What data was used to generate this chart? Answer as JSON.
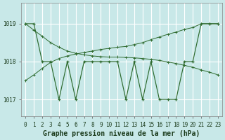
{
  "background_color": "#c8e8e8",
  "grid_color": "#b0d8d8",
  "line_color": "#2d6a2d",
  "title": "Graphe pression niveau de la mer (hPa)",
  "ylim": [
    1016.55,
    1019.55
  ],
  "xlim": [
    -0.5,
    23.5
  ],
  "yticks": [
    1017,
    1018,
    1019
  ],
  "xticks": [
    0,
    1,
    2,
    3,
    4,
    5,
    6,
    7,
    8,
    9,
    10,
    11,
    12,
    13,
    14,
    15,
    16,
    17,
    18,
    19,
    20,
    21,
    22,
    23
  ],
  "series1_x": [
    0,
    1,
    2,
    3,
    4,
    5,
    6,
    7,
    8,
    9,
    10,
    11,
    12,
    13,
    14,
    15,
    16,
    17,
    18,
    19,
    20,
    21,
    22,
    23
  ],
  "series1_y": [
    1019,
    1019,
    1018,
    1018,
    1017,
    1018,
    1017,
    1018,
    1018,
    1018,
    1018,
    1018,
    1017,
    1018,
    1017,
    1018,
    1017,
    1017,
    1017,
    1018,
    1018,
    1019,
    1019,
    1019
  ],
  "series2_x": [
    0,
    1,
    2,
    3,
    4,
    5,
    6,
    7,
    8,
    9,
    10,
    11,
    12,
    13,
    14,
    15,
    16,
    17,
    18,
    19,
    20,
    21,
    22,
    23
  ],
  "series2_y": [
    1019.0,
    1018.83,
    1018.67,
    1018.5,
    1018.38,
    1018.28,
    1018.22,
    1018.18,
    1018.15,
    1018.13,
    1018.12,
    1018.12,
    1018.11,
    1018.1,
    1018.08,
    1018.06,
    1018.03,
    1017.99,
    1017.95,
    1017.9,
    1017.85,
    1017.78,
    1017.72,
    1017.65
  ],
  "series3_x": [
    0,
    1,
    2,
    3,
    4,
    5,
    6,
    7,
    8,
    9,
    10,
    11,
    12,
    13,
    14,
    15,
    16,
    17,
    18,
    19,
    20,
    21,
    22,
    23
  ],
  "series3_y": [
    1017.5,
    1017.65,
    1017.82,
    1017.98,
    1018.08,
    1018.15,
    1018.2,
    1018.24,
    1018.28,
    1018.32,
    1018.35,
    1018.38,
    1018.4,
    1018.45,
    1018.5,
    1018.58,
    1018.65,
    1018.72,
    1018.78,
    1018.85,
    1018.9,
    1019.0,
    1019.0,
    1019.0
  ],
  "title_fontsize": 7.0,
  "tick_fontsize": 5.5
}
